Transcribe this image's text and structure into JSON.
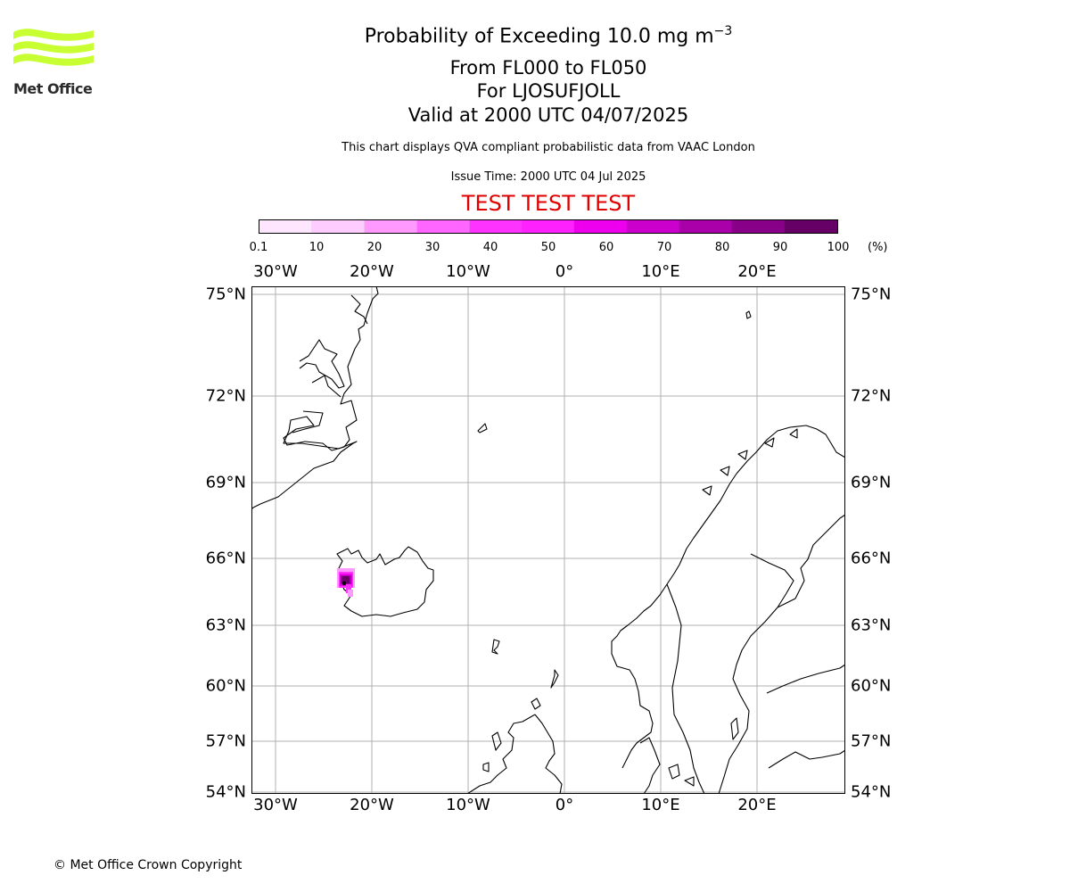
{
  "logo": {
    "name": "Met Office",
    "color": "#c8ff32"
  },
  "title": {
    "main": "Probability of Exceeding 10.0 mg m",
    "superscript": "−3",
    "levels": "From FL000 to FL050",
    "location": "For LJOSUFJOLL",
    "valid": "Valid at 2000 UTC 04/07/2025",
    "description": "This chart displays QVA compliant probabilistic data from VAAC London",
    "issue": "Issue Time: 2000 UTC 04 Jul 2025",
    "banner": "TEST TEST TEST",
    "banner_color": "#e00000"
  },
  "colorbar": {
    "ticks": [
      "0.1",
      "10",
      "20",
      "30",
      "40",
      "50",
      "60",
      "70",
      "80",
      "90",
      "100"
    ],
    "unit": "(%)",
    "colors": [
      "#ffe6ff",
      "#ffccff",
      "#ff99ff",
      "#ff66ff",
      "#ff33ff",
      "#ff22ff",
      "#ee00ee",
      "#cc00cc",
      "#aa00aa",
      "#880088",
      "#660066"
    ]
  },
  "map": {
    "lon_labels": [
      "30°W",
      "20°W",
      "10°W",
      "0°",
      "10°E",
      "20°E"
    ],
    "lat_labels": [
      "75°N",
      "72°N",
      "69°N",
      "66°N",
      "63°N",
      "60°N",
      "57°N",
      "54°N"
    ],
    "plume_probability_levels": [
      10,
      30,
      50,
      70,
      90
    ]
  },
  "footer": {
    "copyright": "© Met Office Crown Copyright"
  }
}
